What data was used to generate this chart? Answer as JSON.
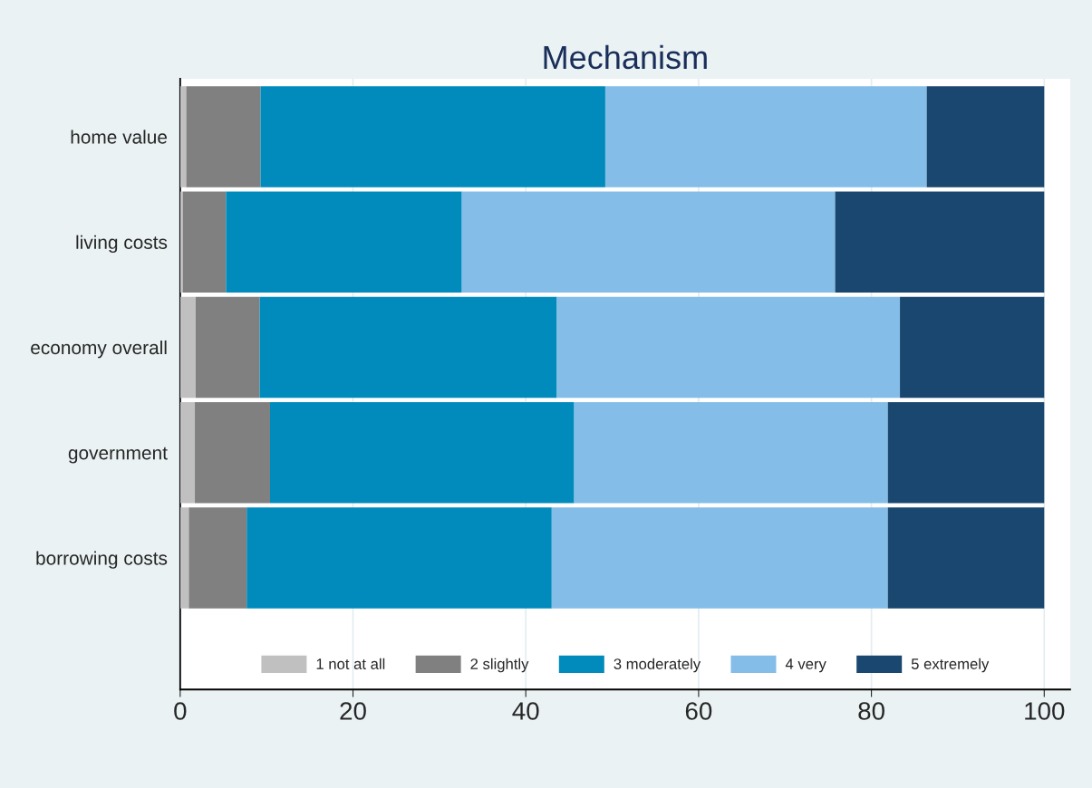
{
  "chart_data": {
    "type": "bar",
    "title": "Mechanism",
    "orientation": "horizontal",
    "stacked": true,
    "categories": [
      "home value",
      "living costs",
      "economy overall",
      "government",
      "borrowing costs"
    ],
    "series": [
      {
        "name": "1 not at all",
        "color": "#c0c0c0",
        "values": [
          0.7,
          0.3,
          1.8,
          1.7,
          1.0
        ]
      },
      {
        "name": "2 slightly",
        "color": "#808080",
        "values": [
          8.6,
          5.0,
          7.4,
          8.7,
          6.7
        ]
      },
      {
        "name": "3 moderately",
        "color": "#008bbc",
        "values": [
          39.9,
          27.3,
          34.4,
          35.2,
          35.3
        ]
      },
      {
        "name": "4 very",
        "color": "#83bde8",
        "values": [
          37.2,
          43.2,
          39.7,
          36.3,
          38.9
        ]
      },
      {
        "name": "5 extremely",
        "color": "#1a476f",
        "values": [
          13.6,
          24.2,
          16.7,
          18.1,
          18.1
        ]
      }
    ],
    "xlim": [
      0,
      103
    ],
    "xticks": [
      0,
      20,
      40,
      60,
      80,
      100
    ],
    "grid": "x",
    "legend": "bottom"
  }
}
